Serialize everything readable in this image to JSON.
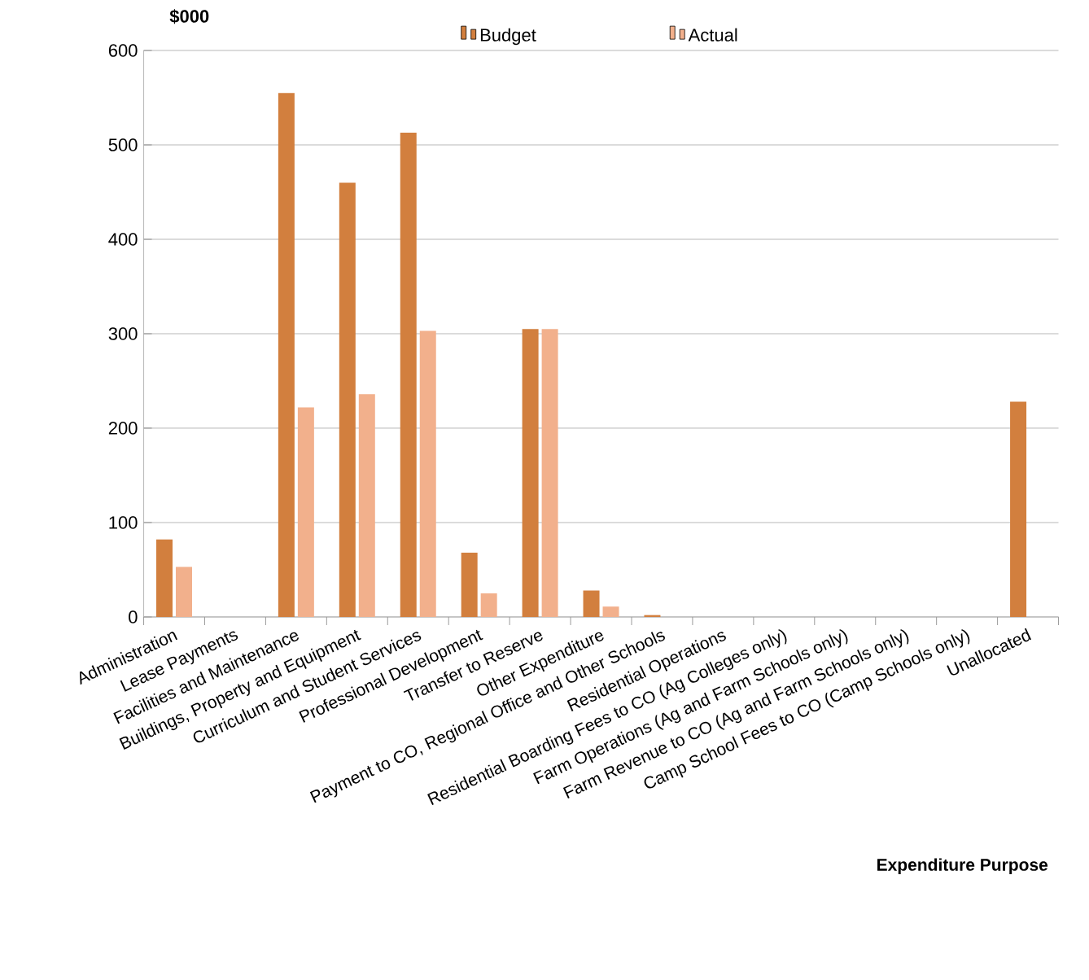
{
  "chart_data": {
    "type": "bar",
    "ylabel": "$000",
    "xlabel": "Expenditure Purpose",
    "categories": [
      "Administration",
      "Lease Payments",
      "Facilities and Maintenance",
      "Buildings, Property and Equipment",
      "Curriculum and Student Services",
      "Professional Development",
      "Transfer to Reserve",
      "Other Expenditure",
      "Payment to CO, Regional Office and Other Schools",
      "Residential Operations",
      "Residential Boarding Fees to CO (Ag Colleges only)",
      "Farm Operations (Ag and Farm Schools only)",
      "Farm Revenue to CO (Ag and Farm Schools only)",
      "Camp School Fees to CO (Camp Schools only)",
      "Unallocated"
    ],
    "series": [
      {
        "name": "Budget",
        "color": "#d27f3e",
        "values": [
          82,
          0,
          555,
          460,
          513,
          68,
          305,
          28,
          2,
          0,
          0,
          0,
          0,
          0,
          228
        ]
      },
      {
        "name": "Actual",
        "color": "#f2b08c",
        "values": [
          53,
          0,
          222,
          236,
          303,
          25,
          305,
          11,
          0,
          0,
          0,
          0,
          0,
          0,
          0
        ]
      }
    ],
    "ylim": [
      0,
      600
    ],
    "yticks": [
      0,
      100,
      200,
      300,
      400,
      500,
      600
    ],
    "grid": "y",
    "legend": "top"
  }
}
